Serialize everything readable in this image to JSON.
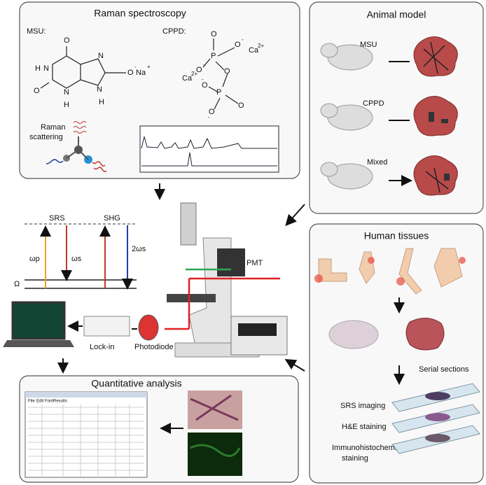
{
  "raman": {
    "title": "Raman  spectroscopy",
    "msu_label": "MSU:",
    "cppd_label": "CPPD:",
    "scattering": [
      "Raman",
      "scattering"
    ],
    "msu_atoms": [
      "O",
      "H",
      "N",
      "O",
      "N",
      "H",
      "N",
      "N",
      "H",
      "O",
      "-",
      "Na",
      "+"
    ],
    "cppd_atoms": [
      "O",
      "-",
      "Ca",
      "2+",
      "O",
      "P",
      "O",
      "-",
      "Ca",
      "2+",
      "O",
      "O",
      "-",
      "P",
      "O",
      "O",
      "-"
    ]
  },
  "animal_model": {
    "title": "Animal model",
    "groups": [
      "MSU",
      "CPPD",
      "Mixed"
    ]
  },
  "human_tissues": {
    "title": "Human tissues",
    "serial_sections": "Serial sections",
    "stains": [
      "SRS imaging",
      "H&E staining",
      "Immunohistochem.",
      "staining"
    ]
  },
  "setup": {
    "srs": "SRS",
    "shg": "SHG",
    "omega_p": "ωp",
    "omega_s": "ωs",
    "two_omega_s": "2ωs",
    "omega": "Ω",
    "pmt": "PMT",
    "lock_in": "Lock-in",
    "photodiode": "Photodiode"
  },
  "quantitative_analysis": {
    "title": "Quantitative analysis",
    "menu": [
      "File",
      "Edit",
      "Font",
      "Results"
    ]
  }
}
